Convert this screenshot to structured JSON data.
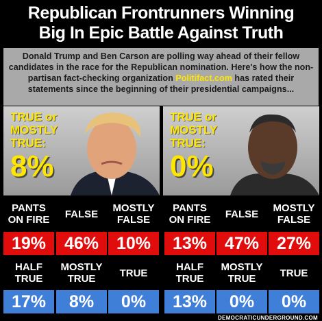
{
  "header": {
    "title_lines": [
      "Republican Frontrunners Winning",
      "Big In Epic Battle Against Truth"
    ]
  },
  "intro": {
    "before": "Donald Trump and Ben Carson are polling way ahead of their fellow candidates in the race for the Republican nomination. Here's how the non-partisan fact-checking organization ",
    "link": "Politifact.com",
    "after": " has rated their statements since the beginning of their presidential campaigns..."
  },
  "panels": [
    {
      "summary_label_lines": [
        "TRUE or",
        "MOSTLY",
        "TRUE:"
      ],
      "summary_value": "8%",
      "ratings": [
        {
          "label_lines": [
            "PANTS",
            "ON FIRE"
          ],
          "value": "19%"
        },
        {
          "label_lines": [
            "FALSE"
          ],
          "value": "46%"
        },
        {
          "label_lines": [
            "MOSTLY",
            "FALSE"
          ],
          "value": "10%"
        },
        {
          "label_lines": [
            "HALF",
            "TRUE"
          ],
          "value": "17%"
        },
        {
          "label_lines": [
            "MOSTLY",
            "TRUE"
          ],
          "value": "8%"
        },
        {
          "label_lines": [
            "TRUE"
          ],
          "value": "0%"
        }
      ]
    },
    {
      "summary_label_lines": [
        "TRUE or",
        "MOSTLY",
        "TRUE:"
      ],
      "summary_value": "0%",
      "ratings": [
        {
          "label_lines": [
            "PANTS",
            "ON FIRE"
          ],
          "value": "13%"
        },
        {
          "label_lines": [
            "FALSE"
          ],
          "value": "47%"
        },
        {
          "label_lines": [
            "MOSTLY",
            "FALSE"
          ],
          "value": "27%"
        },
        {
          "label_lines": [
            "HALF",
            "TRUE"
          ],
          "value": "13%"
        },
        {
          "label_lines": [
            "MOSTLY",
            "TRUE"
          ],
          "value": "0%"
        },
        {
          "label_lines": [
            "TRUE"
          ],
          "value": "0%"
        }
      ]
    }
  ],
  "footer": "DEMOCRATICUNDERGROUND.COM"
}
